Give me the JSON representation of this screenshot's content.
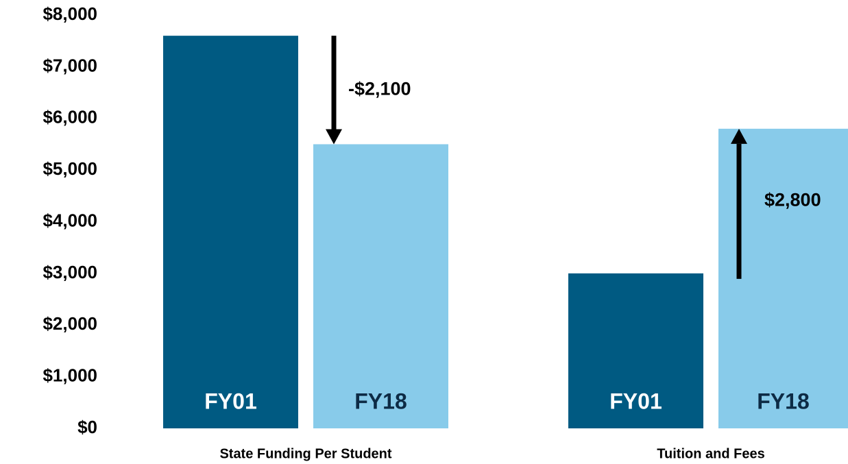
{
  "chart_data": {
    "type": "bar",
    "categories": [
      "State Funding Per Student",
      "Tuition and Fees"
    ],
    "series": [
      {
        "name": "FY01",
        "color": "#005a82",
        "label_color": "#ffffff",
        "values": [
          7600,
          3000
        ]
      },
      {
        "name": "FY18",
        "color": "#88cbea",
        "label_color": "#0d2b45",
        "values": [
          5500,
          5800
        ]
      }
    ],
    "ylim": [
      0,
      8000
    ],
    "yticks": [
      {
        "value": 0,
        "label": "$0"
      },
      {
        "value": 1000,
        "label": "$1,000"
      },
      {
        "value": 2000,
        "label": "$2,000"
      },
      {
        "value": 3000,
        "label": "$3,000"
      },
      {
        "value": 4000,
        "label": "$4,000"
      },
      {
        "value": 5000,
        "label": "$5,000"
      },
      {
        "value": 6000,
        "label": "$6,000"
      },
      {
        "value": 7000,
        "label": "$7,000"
      },
      {
        "value": 8000,
        "label": "$8,000"
      }
    ],
    "grid": false,
    "annotations": [
      {
        "text": "-$2,100",
        "category": 0
      },
      {
        "text": "$2,800",
        "category": 1
      }
    ]
  }
}
